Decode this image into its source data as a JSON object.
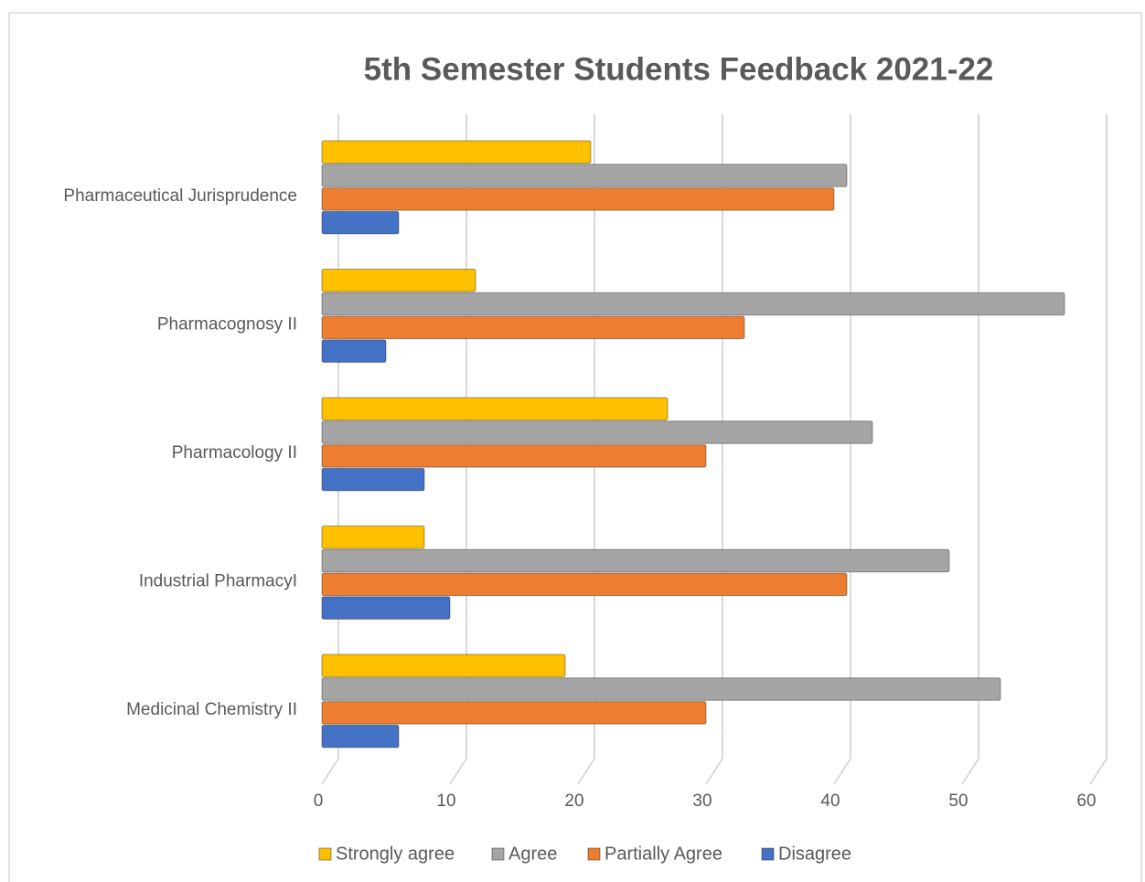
{
  "chart_data": {
    "type": "bar",
    "orientation": "horizontal",
    "title": "5th Semester Students Feedback 2021-22",
    "categories": [
      "Pharmaceutical Jurisprudence",
      "Pharmacognosy II",
      "Pharmacology II",
      "Industrial PharmacyI",
      "Medicinal Chemistry II"
    ],
    "series": [
      {
        "name": "Strongly agree",
        "color": "#ffc000",
        "values": [
          21,
          12,
          27,
          8,
          19
        ]
      },
      {
        "name": "Agree",
        "color": "#a5a5a5",
        "values": [
          41,
          58,
          43,
          49,
          53
        ]
      },
      {
        "name": "Partially Agree",
        "color": "#ed7d31",
        "values": [
          40,
          33,
          30,
          41,
          30
        ]
      },
      {
        "name": "Disagree",
        "color": "#4472c4",
        "values": [
          6,
          5,
          8,
          10,
          6
        ]
      }
    ],
    "xlim": [
      0,
      60
    ],
    "xticks": [
      0,
      10,
      20,
      30,
      40,
      50,
      60
    ],
    "grid": true,
    "legend": "bottom"
  }
}
